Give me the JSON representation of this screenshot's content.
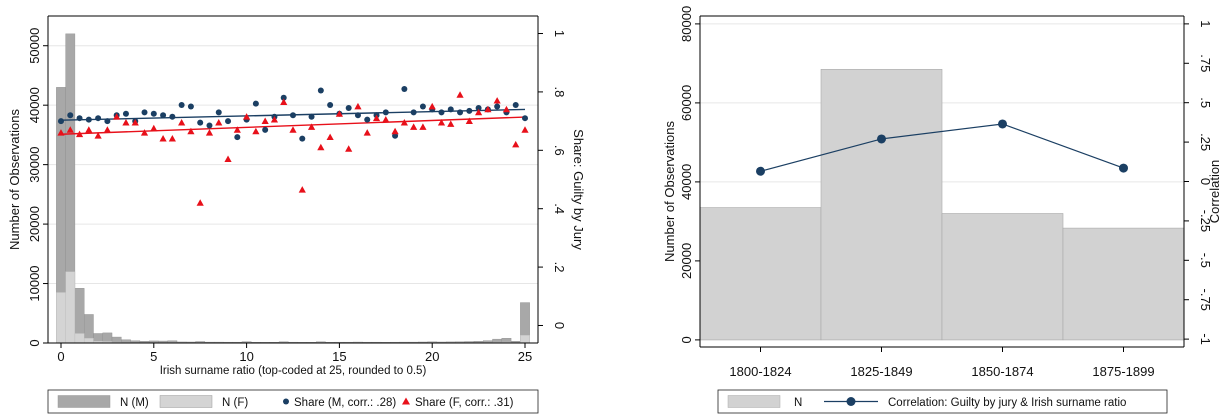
{
  "chart_data": [
    {
      "type": "bar+scatter",
      "xlabel": "Irish surname ratio (top-coded at 25, rounded to 0.5)",
      "ylabel": "Number of Observations",
      "y2label": "Share: Guilty by Jury",
      "xlim": [
        -0.7,
        25.7
      ],
      "ylim": [
        0,
        55000
      ],
      "y2lim": [
        -0.06,
        1.06
      ],
      "x_ticks": [
        "0",
        "5",
        "10",
        "15",
        "20",
        "25"
      ],
      "y_ticks": [
        "0",
        "10000",
        "20000",
        "30000",
        "40000",
        "50000"
      ],
      "y2_ticks": [
        "0",
        ".2",
        ".4",
        ".6",
        ".8",
        "1"
      ],
      "colors": {
        "bar_m": "#a8a8a8",
        "bar_f": "#d4d4d4",
        "share_m": "#1b3f63",
        "share_f": "#e8101a",
        "fit_m": "#1b3f63",
        "fit_f": "#e8101a"
      },
      "legend": {
        "position": "bottom",
        "items": [
          {
            "label": "N (M)",
            "kind": "bar_m"
          },
          {
            "label": "N (F)",
            "kind": "bar_f"
          },
          {
            "label": "Share (M, corr.: .28)",
            "kind": "share_m"
          },
          {
            "label": "Share (F, corr.: .31)",
            "kind": "share_f"
          }
        ]
      },
      "bin_width": 0.5,
      "bars_m": [
        {
          "x": 0,
          "n": 43000
        },
        {
          "x": 0.5,
          "n": 52000
        },
        {
          "x": 1,
          "n": 9200
        },
        {
          "x": 1.5,
          "n": 4800
        },
        {
          "x": 2,
          "n": 1600
        },
        {
          "x": 2.5,
          "n": 1700
        },
        {
          "x": 3,
          "n": 1000
        },
        {
          "x": 3.5,
          "n": 550
        },
        {
          "x": 4,
          "n": 380
        },
        {
          "x": 4.5,
          "n": 300
        },
        {
          "x": 5,
          "n": 350
        },
        {
          "x": 5.5,
          "n": 330
        },
        {
          "x": 6,
          "n": 380
        },
        {
          "x": 6.5,
          "n": 180
        },
        {
          "x": 7,
          "n": 170
        },
        {
          "x": 7.5,
          "n": 250
        },
        {
          "x": 8,
          "n": 150
        },
        {
          "x": 8.5,
          "n": 150
        },
        {
          "x": 9,
          "n": 140
        },
        {
          "x": 9.5,
          "n": 140
        },
        {
          "x": 10,
          "n": 230
        },
        {
          "x": 10.5,
          "n": 130
        },
        {
          "x": 11,
          "n": 130
        },
        {
          "x": 11.5,
          "n": 120
        },
        {
          "x": 12,
          "n": 200
        },
        {
          "x": 12.5,
          "n": 140
        },
        {
          "x": 13,
          "n": 130
        },
        {
          "x": 13.5,
          "n": 120
        },
        {
          "x": 14,
          "n": 200
        },
        {
          "x": 14.5,
          "n": 130
        },
        {
          "x": 15,
          "n": 140
        },
        {
          "x": 15.5,
          "n": 140
        },
        {
          "x": 16,
          "n": 160
        },
        {
          "x": 16.5,
          "n": 140
        },
        {
          "x": 17,
          "n": 140
        },
        {
          "x": 17.5,
          "n": 120
        },
        {
          "x": 18,
          "n": 140
        },
        {
          "x": 18.5,
          "n": 150
        },
        {
          "x": 19,
          "n": 150
        },
        {
          "x": 19.5,
          "n": 170
        },
        {
          "x": 20,
          "n": 200
        },
        {
          "x": 20.5,
          "n": 170
        },
        {
          "x": 21,
          "n": 190
        },
        {
          "x": 21.5,
          "n": 220
        },
        {
          "x": 22,
          "n": 250
        },
        {
          "x": 22.5,
          "n": 300
        },
        {
          "x": 23,
          "n": 400
        },
        {
          "x": 23.5,
          "n": 650
        },
        {
          "x": 24,
          "n": 800
        },
        {
          "x": 24.5,
          "n": 300
        },
        {
          "x": 25,
          "n": 6800
        }
      ],
      "bars_f": [
        {
          "x": 0,
          "n": 8500
        },
        {
          "x": 0.5,
          "n": 12000
        },
        {
          "x": 1,
          "n": 1600
        },
        {
          "x": 1.5,
          "n": 800
        },
        {
          "x": 2,
          "n": 300
        },
        {
          "x": 2.5,
          "n": 250
        },
        {
          "x": 3,
          "n": 150
        },
        {
          "x": 3.5,
          "n": 100
        },
        {
          "x": 4,
          "n": 60
        },
        {
          "x": 4.5,
          "n": 50
        },
        {
          "x": 5,
          "n": 60
        },
        {
          "x": 5.5,
          "n": 50
        },
        {
          "x": 6,
          "n": 60
        },
        {
          "x": 6.5,
          "n": 40
        },
        {
          "x": 7,
          "n": 40
        },
        {
          "x": 7.5,
          "n": 50
        },
        {
          "x": 8,
          "n": 30
        },
        {
          "x": 8.5,
          "n": 30
        },
        {
          "x": 9,
          "n": 30
        },
        {
          "x": 9.5,
          "n": 30
        },
        {
          "x": 10,
          "n": 40
        },
        {
          "x": 10.5,
          "n": 30
        },
        {
          "x": 11,
          "n": 30
        },
        {
          "x": 11.5,
          "n": 30
        },
        {
          "x": 12,
          "n": 40
        },
        {
          "x": 12.5,
          "n": 30
        },
        {
          "x": 13,
          "n": 30
        },
        {
          "x": 13.5,
          "n": 30
        },
        {
          "x": 14,
          "n": 40
        },
        {
          "x": 14.5,
          "n": 30
        },
        {
          "x": 15,
          "n": 30
        },
        {
          "x": 15.5,
          "n": 30
        },
        {
          "x": 16,
          "n": 30
        },
        {
          "x": 16.5,
          "n": 30
        },
        {
          "x": 17,
          "n": 30
        },
        {
          "x": 17.5,
          "n": 30
        },
        {
          "x": 18,
          "n": 30
        },
        {
          "x": 18.5,
          "n": 30
        },
        {
          "x": 19,
          "n": 30
        },
        {
          "x": 19.5,
          "n": 40
        },
        {
          "x": 20,
          "n": 40
        },
        {
          "x": 20.5,
          "n": 40
        },
        {
          "x": 21,
          "n": 40
        },
        {
          "x": 21.5,
          "n": 50
        },
        {
          "x": 22,
          "n": 50
        },
        {
          "x": 22.5,
          "n": 60
        },
        {
          "x": 23,
          "n": 80
        },
        {
          "x": 23.5,
          "n": 120
        },
        {
          "x": 24,
          "n": 150
        },
        {
          "x": 24.5,
          "n": 60
        },
        {
          "x": 25,
          "n": 1300
        }
      ],
      "share_m": [
        {
          "x": 0,
          "y": 0.7
        },
        {
          "x": 0.5,
          "y": 0.72
        },
        {
          "x": 1,
          "y": 0.71
        },
        {
          "x": 1.5,
          "y": 0.705
        },
        {
          "x": 2,
          "y": 0.71
        },
        {
          "x": 2.5,
          "y": 0.7
        },
        {
          "x": 3,
          "y": 0.72
        },
        {
          "x": 3.5,
          "y": 0.725
        },
        {
          "x": 4,
          "y": 0.7
        },
        {
          "x": 4.5,
          "y": 0.73
        },
        {
          "x": 5,
          "y": 0.725
        },
        {
          "x": 5.5,
          "y": 0.72
        },
        {
          "x": 6,
          "y": 0.715
        },
        {
          "x": 6.5,
          "y": 0.755
        },
        {
          "x": 7,
          "y": 0.75
        },
        {
          "x": 7.5,
          "y": 0.695
        },
        {
          "x": 8,
          "y": 0.685
        },
        {
          "x": 8.5,
          "y": 0.73
        },
        {
          "x": 9,
          "y": 0.7
        },
        {
          "x": 9.5,
          "y": 0.645
        },
        {
          "x": 10,
          "y": 0.705
        },
        {
          "x": 10.5,
          "y": 0.76
        },
        {
          "x": 11,
          "y": 0.67
        },
        {
          "x": 11.5,
          "y": 0.715
        },
        {
          "x": 12,
          "y": 0.78
        },
        {
          "x": 12.5,
          "y": 0.72
        },
        {
          "x": 13,
          "y": 0.64
        },
        {
          "x": 13.5,
          "y": 0.715
        },
        {
          "x": 14,
          "y": 0.805
        },
        {
          "x": 14.5,
          "y": 0.755
        },
        {
          "x": 15,
          "y": 0.725
        },
        {
          "x": 15.5,
          "y": 0.745
        },
        {
          "x": 16,
          "y": 0.72
        },
        {
          "x": 16.5,
          "y": 0.705
        },
        {
          "x": 17,
          "y": 0.72
        },
        {
          "x": 17.5,
          "y": 0.73
        },
        {
          "x": 18,
          "y": 0.65
        },
        {
          "x": 18.5,
          "y": 0.81
        },
        {
          "x": 19,
          "y": 0.73
        },
        {
          "x": 19.5,
          "y": 0.75
        },
        {
          "x": 20,
          "y": 0.74
        },
        {
          "x": 20.5,
          "y": 0.73
        },
        {
          "x": 21,
          "y": 0.74
        },
        {
          "x": 21.5,
          "y": 0.73
        },
        {
          "x": 22,
          "y": 0.735
        },
        {
          "x": 22.5,
          "y": 0.745
        },
        {
          "x": 23,
          "y": 0.74
        },
        {
          "x": 23.5,
          "y": 0.75
        },
        {
          "x": 24,
          "y": 0.73
        },
        {
          "x": 24.5,
          "y": 0.755
        },
        {
          "x": 25,
          "y": 0.71
        }
      ],
      "share_f": [
        {
          "x": 0,
          "y": 0.66
        },
        {
          "x": 0.5,
          "y": 0.67
        },
        {
          "x": 1,
          "y": 0.655
        },
        {
          "x": 1.5,
          "y": 0.67
        },
        {
          "x": 2,
          "y": 0.65
        },
        {
          "x": 2.5,
          "y": 0.67
        },
        {
          "x": 3,
          "y": 0.715
        },
        {
          "x": 3.5,
          "y": 0.695
        },
        {
          "x": 4,
          "y": 0.695
        },
        {
          "x": 4.5,
          "y": 0.66
        },
        {
          "x": 5,
          "y": 0.675
        },
        {
          "x": 5.5,
          "y": 0.64
        },
        {
          "x": 6,
          "y": 0.64
        },
        {
          "x": 6.5,
          "y": 0.695
        },
        {
          "x": 7,
          "y": 0.665
        },
        {
          "x": 7.5,
          "y": 0.42
        },
        {
          "x": 8,
          "y": 0.66
        },
        {
          "x": 8.5,
          "y": 0.695
        },
        {
          "x": 9,
          "y": 0.57
        },
        {
          "x": 9.5,
          "y": 0.67
        },
        {
          "x": 10,
          "y": 0.715
        },
        {
          "x": 10.5,
          "y": 0.665
        },
        {
          "x": 11,
          "y": 0.7
        },
        {
          "x": 11.5,
          "y": 0.705
        },
        {
          "x": 12,
          "y": 0.765
        },
        {
          "x": 12.5,
          "y": 0.67
        },
        {
          "x": 13,
          "y": 0.465
        },
        {
          "x": 13.5,
          "y": 0.68
        },
        {
          "x": 14,
          "y": 0.61
        },
        {
          "x": 14.5,
          "y": 0.645
        },
        {
          "x": 15,
          "y": 0.725
        },
        {
          "x": 15.5,
          "y": 0.605
        },
        {
          "x": 16,
          "y": 0.75
        },
        {
          "x": 16.5,
          "y": 0.66
        },
        {
          "x": 17,
          "y": 0.71
        },
        {
          "x": 17.5,
          "y": 0.705
        },
        {
          "x": 18,
          "y": 0.665
        },
        {
          "x": 18.5,
          "y": 0.695
        },
        {
          "x": 19,
          "y": 0.68
        },
        {
          "x": 19.5,
          "y": 0.68
        },
        {
          "x": 20,
          "y": 0.75
        },
        {
          "x": 20.5,
          "y": 0.695
        },
        {
          "x": 21,
          "y": 0.69
        },
        {
          "x": 21.5,
          "y": 0.79
        },
        {
          "x": 22,
          "y": 0.7
        },
        {
          "x": 22.5,
          "y": 0.73
        },
        {
          "x": 23,
          "y": 0.74
        },
        {
          "x": 23.5,
          "y": 0.77
        },
        {
          "x": 24,
          "y": 0.74
        },
        {
          "x": 24.5,
          "y": 0.62
        },
        {
          "x": 25,
          "y": 0.67
        }
      ],
      "fit_m": {
        "x": [
          0,
          25
        ],
        "y": [
          0.703,
          0.74
        ]
      },
      "fit_f": {
        "x": [
          0,
          25
        ],
        "y": [
          0.655,
          0.714
        ]
      }
    },
    {
      "type": "bar+line",
      "categories": [
        "1800-1824",
        "1825-1849",
        "1850-1874",
        "1875-1899"
      ],
      "ylabel": "Number of Observations",
      "y2label": "Correlation",
      "ylim": [
        -1800,
        82000
      ],
      "y2lim": [
        -1.05,
        1.05
      ],
      "y_ticks": [
        "0",
        "20000",
        "40000",
        "60000",
        "80000"
      ],
      "y2_ticks": [
        "-1",
        "-.75",
        "-.5",
        "-.25",
        "0",
        ".25",
        ".5",
        ".75",
        "1"
      ],
      "colors": {
        "bar": "#d2d2d2",
        "line": "#1b3f63",
        "marker": "#1b3f63"
      },
      "legend": {
        "position": "bottom",
        "items": [
          {
            "label": "N",
            "kind": "bar"
          },
          {
            "label": "Correlation: Guilty by jury & Irish surname ratio",
            "kind": "line"
          }
        ]
      },
      "observations": [
        33500,
        68500,
        32000,
        28300
      ],
      "correlation": [
        0.065,
        0.27,
        0.365,
        0.085
      ]
    }
  ]
}
